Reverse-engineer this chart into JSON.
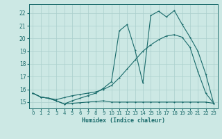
{
  "bg_color": "#cce8e4",
  "grid_color": "#aacfcc",
  "line_color": "#1a6b6b",
  "xlabel": "Humidex (Indice chaleur)",
  "xlim": [
    -0.5,
    23.5
  ],
  "ylim": [
    14.5,
    22.7
  ],
  "xticks": [
    0,
    1,
    2,
    3,
    4,
    5,
    6,
    7,
    8,
    9,
    10,
    11,
    12,
    13,
    14,
    15,
    16,
    17,
    18,
    19,
    20,
    21,
    22,
    23
  ],
  "yticks": [
    15,
    16,
    17,
    18,
    19,
    20,
    21,
    22
  ],
  "curve1_x": [
    0,
    1,
    2,
    3,
    4,
    5,
    6,
    7,
    8,
    9,
    10,
    11,
    12,
    13,
    14,
    15,
    16,
    17,
    18,
    19,
    20,
    21,
    22,
    23
  ],
  "curve1_y": [
    15.7,
    15.4,
    15.3,
    15.1,
    14.85,
    14.9,
    14.95,
    15.0,
    15.05,
    15.1,
    15.0,
    15.0,
    15.0,
    15.0,
    15.0,
    15.0,
    15.0,
    15.0,
    15.0,
    15.0,
    15.0,
    15.0,
    15.0,
    14.9
  ],
  "curve2_x": [
    0,
    1,
    2,
    3,
    4,
    5,
    6,
    7,
    8,
    9,
    10,
    11,
    12,
    13,
    14,
    15,
    16,
    17,
    18,
    19,
    20,
    21,
    22,
    23
  ],
  "curve2_y": [
    15.7,
    15.4,
    15.3,
    15.2,
    15.35,
    15.5,
    15.6,
    15.7,
    15.8,
    16.0,
    16.3,
    16.9,
    17.6,
    18.3,
    19.0,
    19.5,
    19.9,
    20.2,
    20.3,
    20.1,
    19.3,
    17.4,
    15.7,
    14.9
  ],
  "curve3_x": [
    0,
    1,
    2,
    3,
    4,
    5,
    6,
    7,
    8,
    9,
    10,
    11,
    12,
    13,
    14,
    15,
    16,
    17,
    18,
    19,
    20,
    21,
    22,
    23
  ],
  "curve3_y": [
    15.7,
    15.4,
    15.3,
    15.1,
    14.85,
    15.1,
    15.3,
    15.5,
    15.7,
    16.1,
    16.6,
    20.6,
    21.1,
    19.1,
    16.5,
    21.8,
    22.15,
    21.7,
    22.2,
    21.1,
    20.1,
    19.0,
    17.2,
    14.9
  ]
}
